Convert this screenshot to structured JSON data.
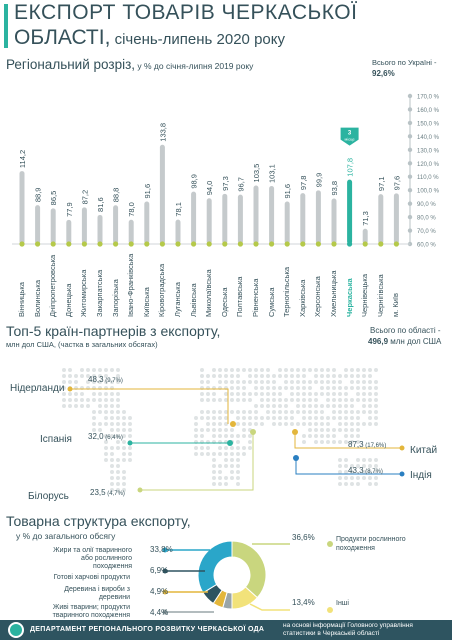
{
  "header": {
    "title_line1": "ЕКСПОРТ ТОВАРІВ ЧЕРКАСЬКОЇ",
    "title_line2": "ОБЛАСТІ,",
    "title_line2_small": " січень-липень 2020 року"
  },
  "regional": {
    "heading": "Регіональний розріз,",
    "heading_small": " у % до січня-липня 2019 року",
    "ukraine_label": "Всього по Україні -",
    "ukraine_value": "92,6",
    "ukraine_unit": "%",
    "rank_badge": "3 місце",
    "accent_color": "#2bb3a0"
  },
  "chart_data": [
    {
      "type": "bar",
      "categories": [
        "Вінницька",
        "Волинська",
        "Дніпропетровська",
        "Донецька",
        "Житомирська",
        "Закарпатська",
        "Запорізька",
        "Івано-Франківська",
        "Київська",
        "Кіровоградська",
        "Луганська",
        "Львівська",
        "Миколаївська",
        "Одеська",
        "Полтавська",
        "Рівненська",
        "Сумська",
        "Тернопільська",
        "Харківська",
        "Херсонська",
        "Хмельницька",
        "Черкаська",
        "Чернівецька",
        "Чернігівська",
        "м. Київ"
      ],
      "values": [
        114.2,
        88.9,
        86.5,
        77.9,
        87.2,
        81.6,
        88.8,
        78.0,
        91.6,
        133.8,
        78.1,
        98.9,
        94.0,
        97.3,
        96.7,
        103.5,
        103.1,
        91.6,
        97.8,
        99.9,
        93.8,
        107.8,
        71.3,
        97.1,
        97.6
      ],
      "value_labels": [
        "114,2",
        "88,9",
        "86,5",
        "77,9",
        "87,2",
        "81,6",
        "88,8",
        "78,0",
        "91,6",
        "133,8",
        "78,1",
        "98,9",
        "94,0",
        "97,3",
        "96,7",
        "103,5",
        "103,1",
        "91,6",
        "97,8",
        "99,9",
        "93,8",
        "107,8",
        "71,3",
        "97,1",
        "97,6"
      ],
      "highlight": "Черкаська",
      "ylim": [
        60,
        170
      ],
      "ytick_labels": [
        "170,0 %",
        "160,0 %",
        "150,0 %",
        "140,0 %",
        "130,0 %",
        "120,0 %",
        "110,0 %",
        "100,0 %",
        "90,0 %",
        "80,0 %",
        "70,0 %",
        "60,0 %"
      ],
      "yticks": [
        170,
        160,
        150,
        140,
        130,
        120,
        110,
        100,
        90,
        80,
        70,
        60
      ]
    },
    {
      "type": "pie",
      "title": "Товарна структура експорту,",
      "subtitle": "у % до загального обсягу",
      "categories": [
        "Продукти рослинного походження",
        "Жири та олії тваринного або рослинного походження",
        "Готові харчові продукти",
        "Деревина і вироби з деревини",
        "Живі тварини; продукти тваринного походження",
        "Інші"
      ],
      "values": [
        36.6,
        33.8,
        6.9,
        4.9,
        4.4,
        13.4
      ],
      "value_labels": [
        "36,6%",
        "33,8%",
        "6,9%",
        "4,9%",
        "4,4%",
        "13,4%"
      ],
      "colors": [
        "#c9d67e",
        "#2aa6c9",
        "#2e5460",
        "#e3b63b",
        "#9aa5a8",
        "#f2e27a"
      ]
    }
  ],
  "partners": {
    "heading": "Топ-5 країн-партнерів з експорту,",
    "subheading": "млн дол США, (частка в загальних обсягах)",
    "total_label": "Всього по області -",
    "total_value": "496,9",
    "total_unit": " млн дол США",
    "countries": [
      {
        "name": "Нідерланди",
        "value": "48,3",
        "share": " (9,7%)",
        "color": "#e3b63b"
      },
      {
        "name": "Іспанія",
        "value": "32,0",
        "share": " (6,4%)",
        "color": "#2bb3a0"
      },
      {
        "name": "Білорусь",
        "value": "23,5",
        "share": " (4,7%)",
        "color": "#c9d67e"
      },
      {
        "name": "Китай",
        "value": "87,3",
        "share": " (17,6%)",
        "color": "#e3b63b"
      },
      {
        "name": "Індія",
        "value": "43,3",
        "share": " (8,7%)",
        "color": "#2a7fc1"
      }
    ]
  },
  "footer": {
    "department": "ДЕПАРТАМЕНТ РЕГІОНАЛЬНОГО РОЗВИТКУ ЧЕРКАСЬКОЇ ОДА",
    "source_line1": "на основі інформації Головного управління",
    "source_line2": "статистики в Черкаській області"
  }
}
